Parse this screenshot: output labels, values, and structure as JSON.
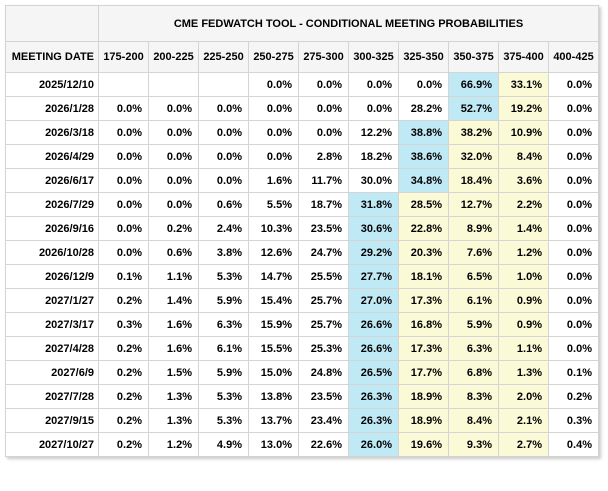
{
  "colors": {
    "highlight_blue": "#BFE9F5",
    "highlight_yellow": "#FAFAD6",
    "header_background": "#F5F5F5",
    "border": "#D4D4D4"
  },
  "table": {
    "title": "CME FEDWATCH TOOL - CONDITIONAL MEETING PROBABILITIES",
    "date_header": "MEETING DATE",
    "rate_headers": [
      "175-200",
      "200-225",
      "225-250",
      "250-275",
      "275-300",
      "300-325",
      "325-350",
      "350-375",
      "375-400",
      "400-425"
    ],
    "rows": [
      {
        "date": "2025/12/10",
        "values": [
          "",
          "",
          "",
          "0.0%",
          "0.0%",
          "0.0%",
          "0.0%",
          "66.9%",
          "33.1%",
          "0.0%"
        ],
        "blue": 7,
        "yellow": [
          8
        ]
      },
      {
        "date": "2026/1/28",
        "values": [
          "0.0%",
          "0.0%",
          "0.0%",
          "0.0%",
          "0.0%",
          "0.0%",
          "28.2%",
          "52.7%",
          "19.2%",
          "0.0%"
        ],
        "blue": 7,
        "yellow": [
          8
        ]
      },
      {
        "date": "2026/3/18",
        "values": [
          "0.0%",
          "0.0%",
          "0.0%",
          "0.0%",
          "0.0%",
          "12.2%",
          "38.8%",
          "38.2%",
          "10.9%",
          "0.0%"
        ],
        "blue": 6,
        "yellow": [
          7,
          8
        ]
      },
      {
        "date": "2026/4/29",
        "values": [
          "0.0%",
          "0.0%",
          "0.0%",
          "0.0%",
          "2.8%",
          "18.2%",
          "38.6%",
          "32.0%",
          "8.4%",
          "0.0%"
        ],
        "blue": 6,
        "yellow": [
          7,
          8
        ]
      },
      {
        "date": "2026/6/17",
        "values": [
          "0.0%",
          "0.0%",
          "0.0%",
          "1.6%",
          "11.7%",
          "30.0%",
          "34.8%",
          "18.4%",
          "3.6%",
          "0.0%"
        ],
        "blue": 6,
        "yellow": [
          7,
          8
        ]
      },
      {
        "date": "2026/7/29",
        "values": [
          "0.0%",
          "0.0%",
          "0.6%",
          "5.5%",
          "18.7%",
          "31.8%",
          "28.5%",
          "12.7%",
          "2.2%",
          "0.0%"
        ],
        "blue": 5,
        "yellow": [
          6,
          7,
          8
        ]
      },
      {
        "date": "2026/9/16",
        "values": [
          "0.0%",
          "0.2%",
          "2.4%",
          "10.3%",
          "23.5%",
          "30.6%",
          "22.8%",
          "8.9%",
          "1.4%",
          "0.0%"
        ],
        "blue": 5,
        "yellow": [
          6,
          7,
          8
        ]
      },
      {
        "date": "2026/10/28",
        "values": [
          "0.0%",
          "0.6%",
          "3.8%",
          "12.6%",
          "24.7%",
          "29.2%",
          "20.3%",
          "7.6%",
          "1.2%",
          "0.0%"
        ],
        "blue": 5,
        "yellow": [
          6,
          7,
          8
        ]
      },
      {
        "date": "2026/12/9",
        "values": [
          "0.1%",
          "1.1%",
          "5.3%",
          "14.7%",
          "25.5%",
          "27.7%",
          "18.1%",
          "6.5%",
          "1.0%",
          "0.0%"
        ],
        "blue": 5,
        "yellow": [
          6,
          7,
          8
        ]
      },
      {
        "date": "2027/1/27",
        "values": [
          "0.2%",
          "1.4%",
          "5.9%",
          "15.4%",
          "25.7%",
          "27.0%",
          "17.3%",
          "6.1%",
          "0.9%",
          "0.0%"
        ],
        "blue": 5,
        "yellow": [
          6,
          7,
          8
        ]
      },
      {
        "date": "2027/3/17",
        "values": [
          "0.3%",
          "1.6%",
          "6.3%",
          "15.9%",
          "25.7%",
          "26.6%",
          "16.8%",
          "5.9%",
          "0.9%",
          "0.0%"
        ],
        "blue": 5,
        "yellow": [
          6,
          7,
          8
        ]
      },
      {
        "date": "2027/4/28",
        "values": [
          "0.2%",
          "1.6%",
          "6.1%",
          "15.5%",
          "25.3%",
          "26.6%",
          "17.3%",
          "6.3%",
          "1.1%",
          "0.0%"
        ],
        "blue": 5,
        "yellow": [
          6,
          7,
          8
        ]
      },
      {
        "date": "2027/6/9",
        "values": [
          "0.2%",
          "1.5%",
          "5.9%",
          "15.0%",
          "24.8%",
          "26.5%",
          "17.7%",
          "6.8%",
          "1.3%",
          "0.1%"
        ],
        "blue": 5,
        "yellow": [
          6,
          7,
          8
        ]
      },
      {
        "date": "2027/7/28",
        "values": [
          "0.2%",
          "1.3%",
          "5.3%",
          "13.8%",
          "23.5%",
          "26.3%",
          "18.9%",
          "8.3%",
          "2.0%",
          "0.2%"
        ],
        "blue": 5,
        "yellow": [
          6,
          7,
          8
        ]
      },
      {
        "date": "2027/9/15",
        "values": [
          "0.2%",
          "1.3%",
          "5.3%",
          "13.7%",
          "23.4%",
          "26.3%",
          "18.9%",
          "8.4%",
          "2.1%",
          "0.3%"
        ],
        "blue": 5,
        "yellow": [
          6,
          7,
          8
        ]
      },
      {
        "date": "2027/10/27",
        "values": [
          "0.2%",
          "1.2%",
          "4.9%",
          "13.0%",
          "22.6%",
          "26.0%",
          "19.6%",
          "9.3%",
          "2.7%",
          "0.4%"
        ],
        "blue": 5,
        "yellow": [
          6,
          7,
          8
        ]
      }
    ]
  }
}
